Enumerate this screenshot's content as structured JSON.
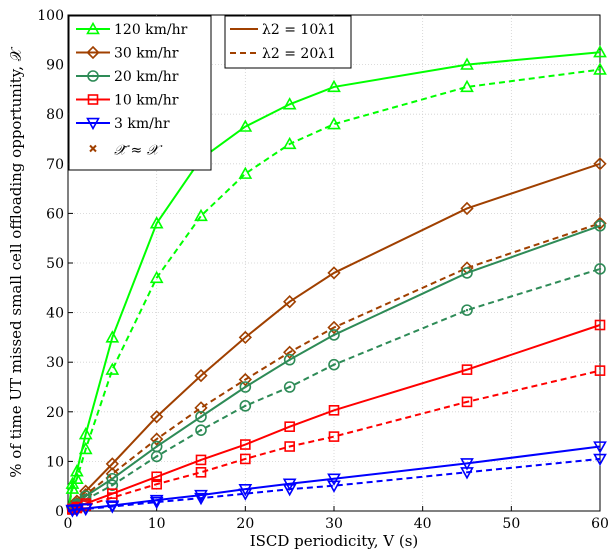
{
  "chart_data": {
    "type": "line",
    "xlabel": "ISCD periodicity, V (s)",
    "ylabel": "% of time UT missed small cell offloading opportunity, 𝒳",
    "xlim": [
      0,
      60
    ],
    "ylim": [
      0,
      100
    ],
    "xticks": [
      0,
      10,
      20,
      30,
      40,
      50,
      60
    ],
    "yticks": [
      0,
      10,
      20,
      30,
      40,
      50,
      60,
      70,
      80,
      90,
      100
    ],
    "grid": true,
    "x": [
      0,
      0.5,
      1,
      2,
      5,
      10,
      15,
      20,
      25,
      30,
      45,
      60
    ],
    "series": [
      {
        "speed": "120 km/hr",
        "ratio": "λ2 = 10λ1",
        "color": "#00ff00",
        "marker": "triangle-up",
        "dash": false,
        "values": [
          0,
          5.5,
          8,
          15.5,
          35,
          58,
          71,
          77.5,
          82,
          85.5,
          90,
          92.5
        ]
      },
      {
        "speed": "120 km/hr",
        "ratio": "λ2 = 20λ1",
        "color": "#00ff00",
        "marker": "triangle-up",
        "dash": true,
        "values": [
          0,
          4.5,
          6.5,
          12.5,
          28.5,
          47,
          59.5,
          68,
          74,
          78,
          85.5,
          89
        ]
      },
      {
        "speed": "30 km/hr",
        "ratio": "λ2 = 10λ1",
        "color": "#a04000",
        "marker": "diamond",
        "dash": false,
        "values": [
          0,
          1,
          2,
          4,
          9.5,
          19,
          27.3,
          35,
          42.2,
          48,
          61,
          70
        ]
      },
      {
        "speed": "30 km/hr",
        "ratio": "λ2 = 20λ1",
        "color": "#a04000",
        "marker": "diamond",
        "dash": true,
        "values": [
          0,
          0.8,
          1.5,
          3.3,
          7.5,
          14.5,
          20.8,
          26.5,
          32,
          37,
          49,
          58
        ]
      },
      {
        "speed": "20 km/hr",
        "ratio": "λ2 = 10λ1",
        "color": "#2e8b57",
        "marker": "circle",
        "dash": false,
        "values": [
          0,
          0.7,
          1.4,
          3,
          6.5,
          13,
          19,
          25,
          30.5,
          35.5,
          48,
          57.5
        ]
      },
      {
        "speed": "20 km/hr",
        "ratio": "λ2 = 20λ1",
        "color": "#2e8b57",
        "marker": "circle",
        "dash": true,
        "values": [
          0,
          0.5,
          1.1,
          2.3,
          5.2,
          11,
          16.3,
          21.2,
          25,
          29.5,
          40.5,
          48.8
        ]
      },
      {
        "speed": "10 km/hr",
        "ratio": "λ2 = 10λ1",
        "color": "#ff0000",
        "marker": "square",
        "dash": false,
        "values": [
          0,
          0.4,
          0.8,
          1.5,
          3.5,
          6.9,
          10.3,
          13.4,
          17,
          20.3,
          28.5,
          37.5
        ]
      },
      {
        "speed": "10 km/hr",
        "ratio": "λ2 = 20λ1",
        "color": "#ff0000",
        "marker": "square",
        "dash": true,
        "values": [
          0,
          0.3,
          0.6,
          1.1,
          2.7,
          5.4,
          7.8,
          10.5,
          13,
          15,
          22,
          28.3
        ]
      },
      {
        "speed": "3 km/hr",
        "ratio": "λ2 = 10λ1",
        "color": "#0000ff",
        "marker": "triangle-down",
        "dash": false,
        "values": [
          0,
          0.2,
          0.3,
          0.5,
          1.1,
          2.2,
          3.2,
          4.4,
          5.5,
          6.5,
          9.6,
          13
        ]
      },
      {
        "speed": "3 km/hr",
        "ratio": "λ2 = 20λ1",
        "color": "#0000ff",
        "marker": "triangle-down",
        "dash": true,
        "values": [
          0,
          0.1,
          0.2,
          0.4,
          0.9,
          1.8,
          2.6,
          3.5,
          4.4,
          5.1,
          7.8,
          10.5
        ]
      }
    ],
    "legend_speed": {
      "position": "top-left",
      "entries": [
        {
          "label": "120 km/hr",
          "color": "#00ff00",
          "marker": "triangle-up"
        },
        {
          "label": "30 km/hr",
          "color": "#a04000",
          "marker": "diamond"
        },
        {
          "label": "20 km/hr",
          "color": "#2e8b57",
          "marker": "circle"
        },
        {
          "label": "10 km/hr",
          "color": "#ff0000",
          "marker": "square"
        },
        {
          "label": "3 km/hr",
          "color": "#0000ff",
          "marker": "triangle-down"
        }
      ],
      "approx_label": "𝒳̃ ≈ 𝒳",
      "approx_marker_color": "#a04000"
    },
    "legend_ratio": {
      "position": "top-center",
      "color": "#a04000",
      "entries": [
        {
          "label": "λ2 = 10λ1",
          "dash": false
        },
        {
          "label": "λ2 = 20λ1",
          "dash": true
        }
      ]
    }
  }
}
